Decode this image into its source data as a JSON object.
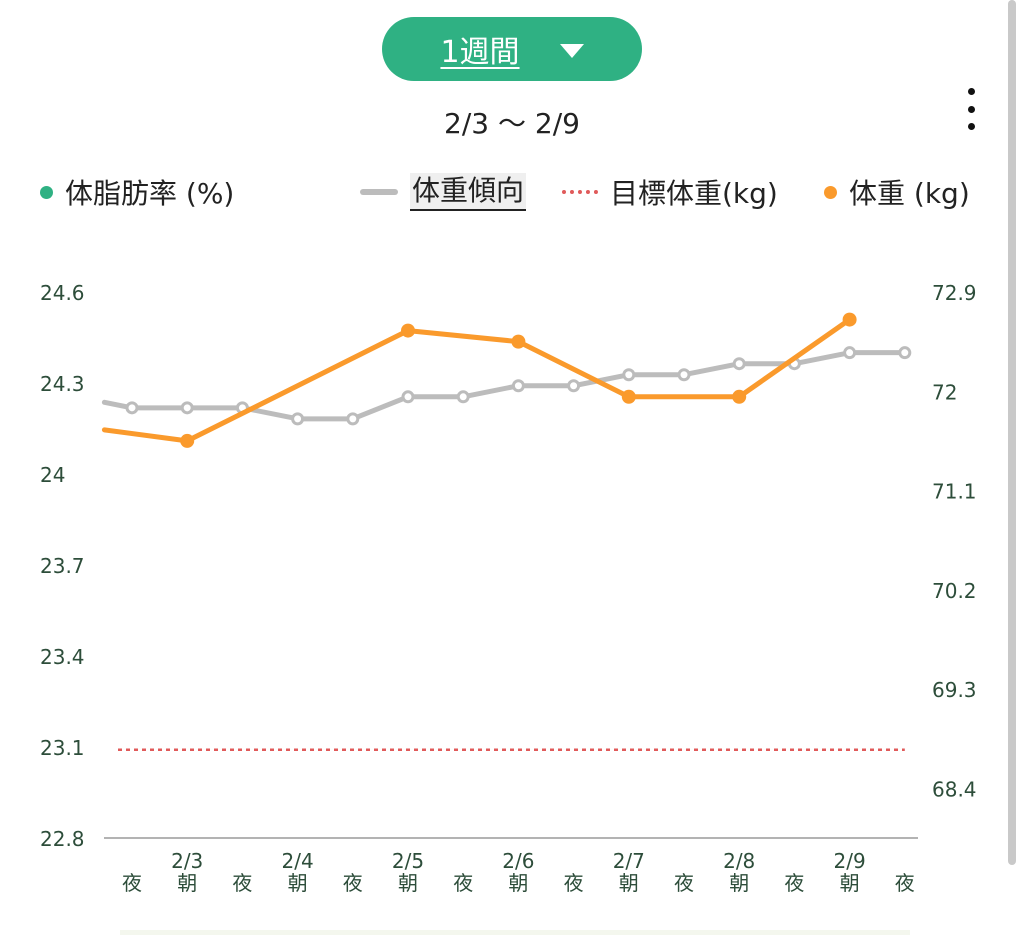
{
  "period_selector": {
    "label": "1週間",
    "caret_icon": "caret-down-icon"
  },
  "date_range": "2/3 ～ 2/9",
  "menu": {
    "icon": "more-vertical-icon"
  },
  "colors": {
    "accent": "#2fb183",
    "body_fat": "#2fb183",
    "weight": "#fa9a2c",
    "trend": "#bcbcbc",
    "target": "#e05a5a",
    "axis_text": "#2d4d3a"
  },
  "legend": {
    "body_fat": "体脂肪率 (%)",
    "trend": "体重傾向",
    "target": "目標体重(kg)",
    "weight": "体重 (kg)"
  },
  "chart_data": {
    "type": "line",
    "x_categories": [
      {
        "date": "",
        "time": "夜"
      },
      {
        "date": "2/3",
        "time": "朝"
      },
      {
        "date": "",
        "time": "夜"
      },
      {
        "date": "2/4",
        "time": "朝"
      },
      {
        "date": "",
        "time": "夜"
      },
      {
        "date": "2/5",
        "time": "朝"
      },
      {
        "date": "",
        "time": "夜"
      },
      {
        "date": "2/6",
        "time": "朝"
      },
      {
        "date": "",
        "time": "夜"
      },
      {
        "date": "2/7",
        "time": "朝"
      },
      {
        "date": "",
        "time": "夜"
      },
      {
        "date": "2/8",
        "time": "朝"
      },
      {
        "date": "",
        "time": "夜"
      },
      {
        "date": "2/9",
        "time": "朝"
      },
      {
        "date": "",
        "time": "夜"
      }
    ],
    "y_left": {
      "ticks": [
        22.8,
        23.1,
        23.4,
        23.7,
        24,
        24.3,
        24.6
      ],
      "range": [
        22.8,
        24.6
      ]
    },
    "y_right": {
      "ticks": [
        68.4,
        69.3,
        70.2,
        71.1,
        72,
        72.9
      ],
      "range": [
        67.95,
        72.9
      ]
    },
    "series": [
      {
        "name": "体重傾向",
        "axis": "right",
        "style": "line-hollow-markers",
        "line_start": {
          "x": -0.5,
          "y": 71.9
        },
        "values": [
          71.85,
          71.85,
          71.85,
          71.75,
          71.75,
          71.95,
          71.95,
          72.05,
          72.05,
          72.15,
          72.15,
          72.25,
          72.25,
          72.35,
          72.35
        ]
      },
      {
        "name": "体重 (kg)",
        "axis": "right",
        "style": "line-filled-markers",
        "line_start": {
          "x": -0.5,
          "y": 71.65
        },
        "values": [
          null,
          71.55,
          null,
          null,
          null,
          72.55,
          null,
          72.45,
          null,
          71.95,
          null,
          71.95,
          null,
          72.65,
          null
        ]
      },
      {
        "name": "目標体重(kg)",
        "axis": "right",
        "style": "dotted-constant",
        "value": 68.75
      }
    ]
  }
}
